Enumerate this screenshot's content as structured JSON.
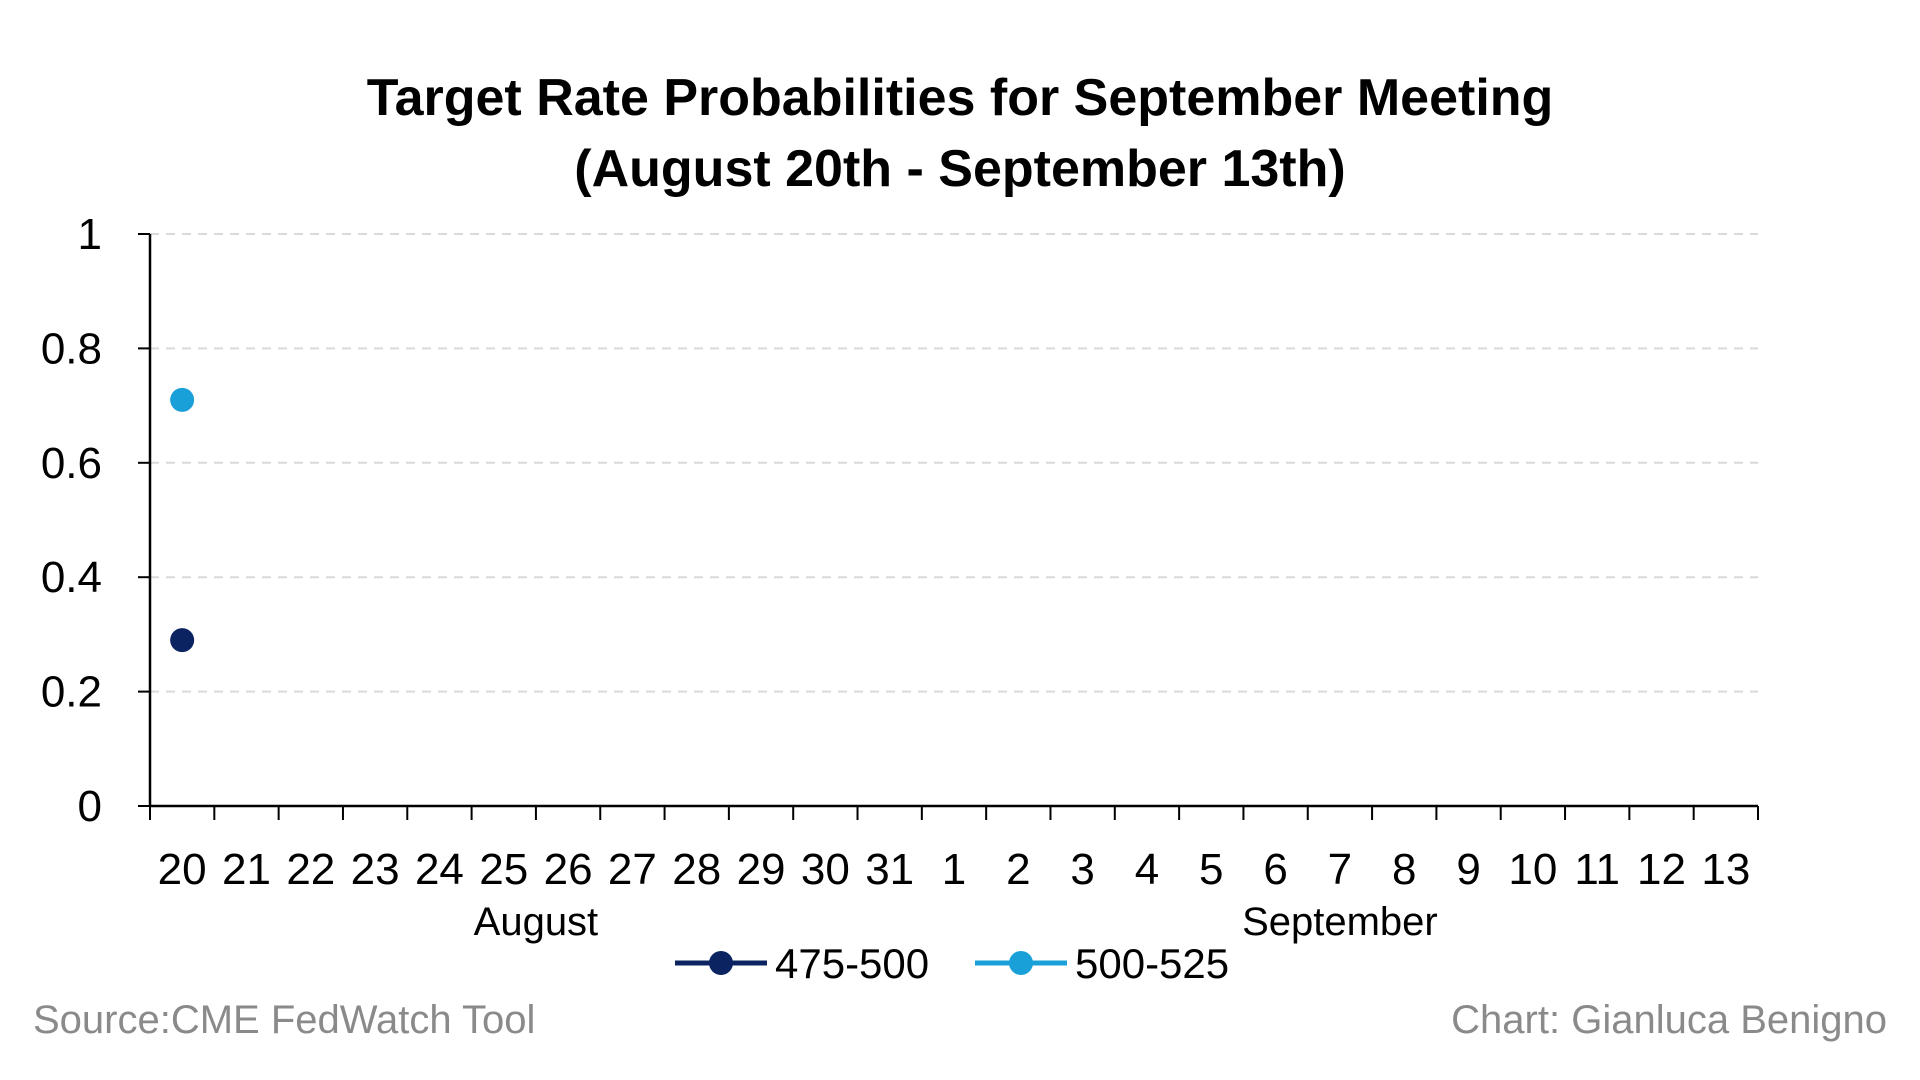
{
  "chart_data": {
    "type": "scatter",
    "title_lines": [
      "Target Rate Probabilities for September Meeting",
      "(August 20th - September 13th)"
    ],
    "xlabel": "",
    "ylabel": "",
    "ylim": [
      0,
      1
    ],
    "y_ticks": [
      "0",
      "0.2",
      "0.4",
      "0.6",
      "0.8",
      "1"
    ],
    "y_tick_values": [
      0,
      0.2,
      0.4,
      0.6,
      0.8,
      1
    ],
    "categories": [
      "20",
      "21",
      "22",
      "23",
      "24",
      "25",
      "26",
      "27",
      "28",
      "29",
      "30",
      "31",
      "1",
      "2",
      "3",
      "4",
      "5",
      "6",
      "7",
      "8",
      "9",
      "10",
      "11",
      "12",
      "13"
    ],
    "category_groups": [
      {
        "label": "August",
        "from_index": 0,
        "to_index": 11
      },
      {
        "label": "September",
        "from_index": 12,
        "to_index": 24
      }
    ],
    "grid": true,
    "legend_position": "bottom",
    "series": [
      {
        "name": "475-500",
        "color": "#0b2461",
        "values": [
          0.29
        ]
      },
      {
        "name": "500-525",
        "color": "#1aa0d8",
        "values": [
          0.71
        ]
      }
    ]
  },
  "footer": {
    "source": "Source:CME FedWatch Tool",
    "credit": "Chart: Gianluca Benigno"
  }
}
